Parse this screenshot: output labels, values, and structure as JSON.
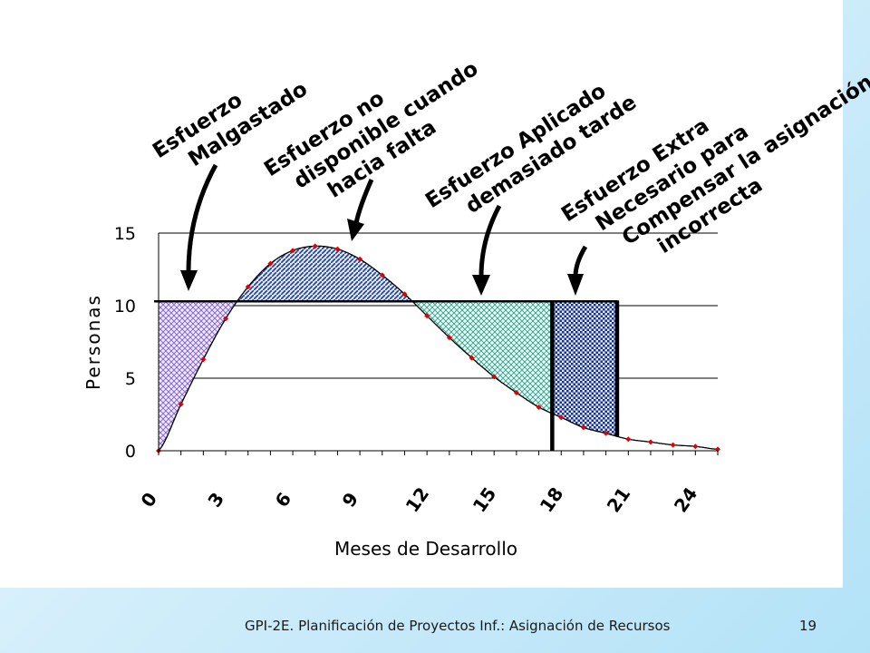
{
  "footer": {
    "title": "GPI-2E. Planificación de Proyectos Inf.: Asignación de Recursos",
    "page": "19"
  },
  "annotations": {
    "wasted": [
      "Esfuerzo",
      "Malgastado"
    ],
    "unavailable": [
      "Esfuerzo no",
      "disponible cuando",
      "hacia falta"
    ],
    "late": [
      "Esfuerzo Aplicado",
      "demasiado tarde"
    ],
    "extra": [
      "Esfuerzo Extra",
      "Necesario para",
      "Compensar la asignación",
      "incorrecta"
    ]
  },
  "colors": {
    "curve": "#000000",
    "points": "#e00000",
    "wasted_fill": "#7f5fc0",
    "unavailable_fill": "#1f3f8f",
    "late_fill": "#2a9a8a",
    "extra_fill": "#16308a"
  },
  "chart_data": {
    "type": "area",
    "xlabel": "Meses de Desarrollo",
    "ylabel": "Personas",
    "xlim": [
      0,
      25
    ],
    "ylim": [
      0,
      15
    ],
    "x_ticks": [
      "0",
      "3",
      "6",
      "9",
      "12",
      "15",
      "18",
      "21",
      "24"
    ],
    "y_ticks": [
      "0",
      "5",
      "10",
      "15"
    ],
    "grid": true,
    "staffing_level": 10.3,
    "original_end": 17.6,
    "extended_end": 20.5,
    "series": [
      {
        "x": [
          0,
          1,
          2,
          3,
          4,
          5,
          6,
          7,
          8,
          9,
          10,
          11,
          12,
          13,
          14,
          15,
          16,
          17,
          18,
          19,
          20,
          21,
          22,
          23,
          24,
          25
        ],
        "values": [
          0,
          3.2,
          6.3,
          9.1,
          11.3,
          12.9,
          13.8,
          14.1,
          13.9,
          13.2,
          12.1,
          10.8,
          9.3,
          7.8,
          6.4,
          5.1,
          4.0,
          3.0,
          2.3,
          1.6,
          1.2,
          0.8,
          0.6,
          0.4,
          0.3,
          0.1
        ]
      }
    ]
  }
}
